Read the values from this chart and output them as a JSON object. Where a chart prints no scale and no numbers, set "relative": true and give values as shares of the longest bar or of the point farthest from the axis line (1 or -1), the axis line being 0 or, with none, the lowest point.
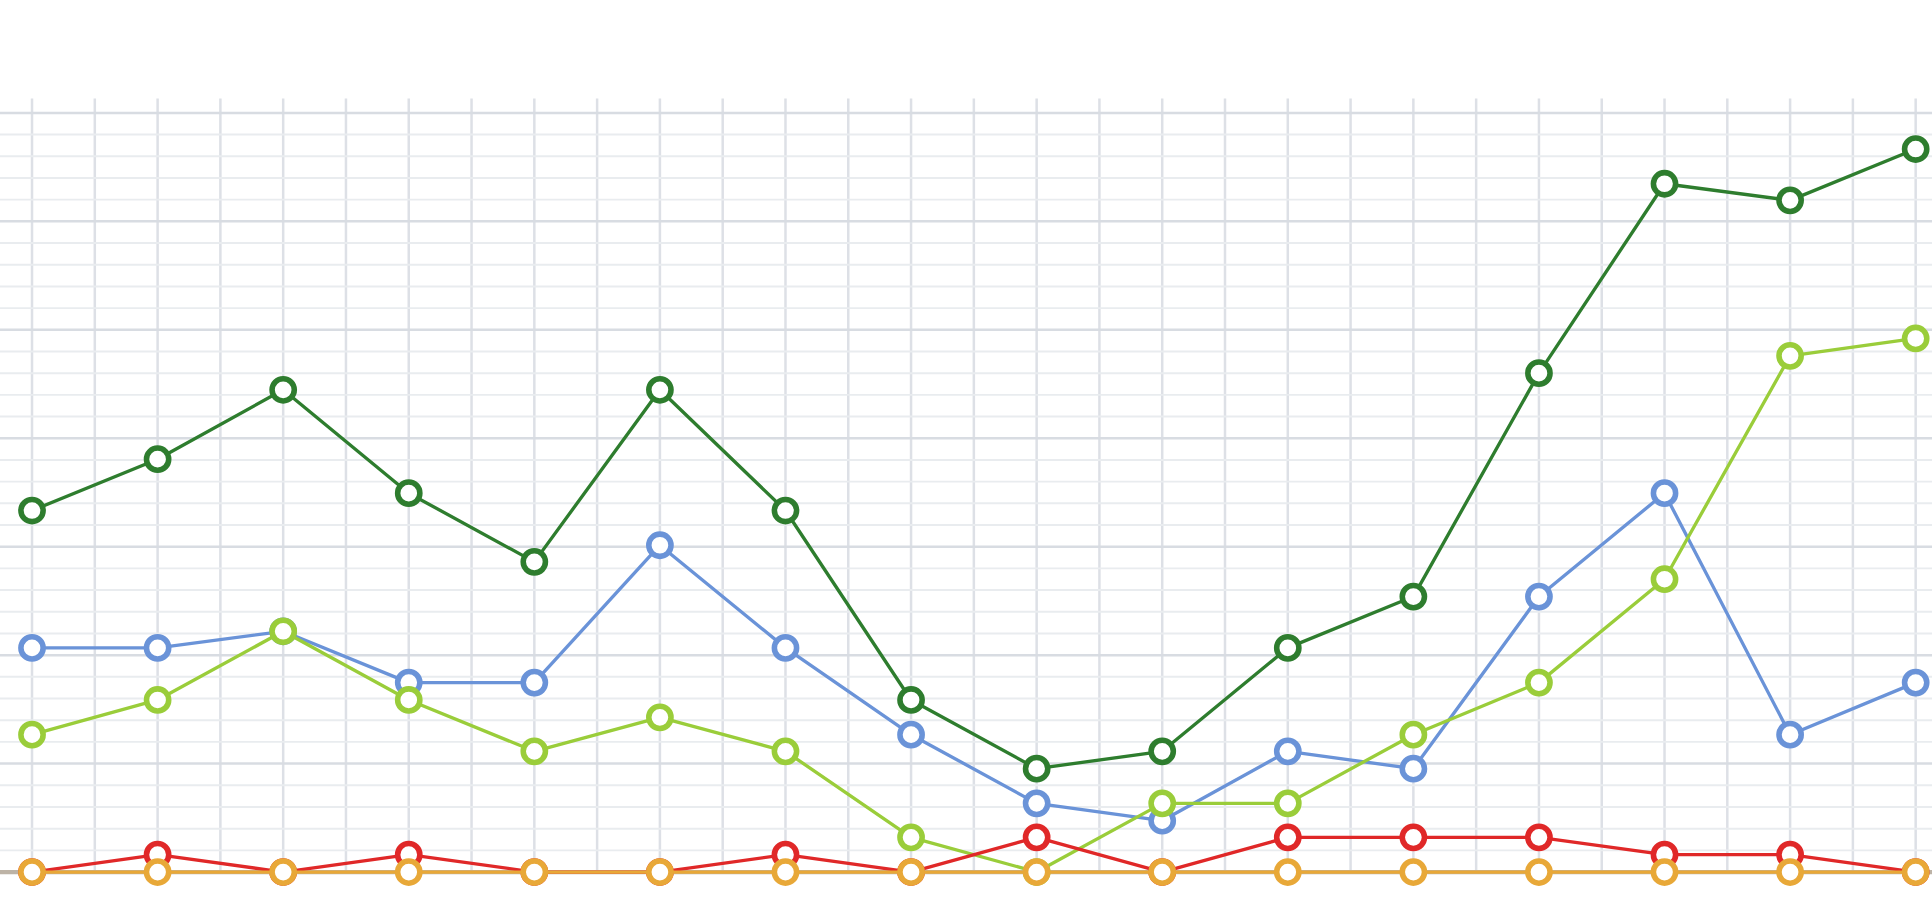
{
  "chart_data": {
    "type": "line",
    "relative": true,
    "grid": true,
    "marker": "circle",
    "line_style": "solid",
    "categories": [
      null,
      null,
      null,
      null,
      null,
      null,
      null,
      null,
      null,
      null,
      null,
      null,
      null,
      null,
      null,
      null
    ],
    "series": [
      {
        "color": "#2e7d2e",
        "values": [
          0.5,
          0.571,
          0.667,
          0.524,
          0.429,
          0.667,
          0.5,
          0.238,
          0.143,
          0.167,
          0.31,
          0.381,
          0.69,
          0.952,
          0.929,
          1.0
        ]
      },
      {
        "color": "#6a93d8",
        "values": [
          0.31,
          0.31,
          0.333,
          0.262,
          0.262,
          0.452,
          0.31,
          0.19,
          0.095,
          0.071,
          0.167,
          0.143,
          0.381,
          0.524,
          0.19,
          0.262
        ]
      },
      {
        "color": "#9acd3a",
        "values": [
          0.19,
          0.238,
          0.333,
          0.238,
          0.167,
          0.214,
          0.167,
          0.048,
          0.0,
          0.095,
          0.095,
          0.19,
          0.262,
          0.405,
          0.714,
          0.738
        ]
      },
      {
        "color": "#e02828",
        "values": [
          0.0,
          0.024,
          0.0,
          0.024,
          0.0,
          0.0,
          0.024,
          0.0,
          0.048,
          0.0,
          0.048,
          0.048,
          0.048,
          0.024,
          0.024,
          0.0
        ]
      },
      {
        "color": "#e8a838",
        "values": [
          0,
          0,
          0,
          0,
          0,
          0,
          0,
          0,
          0,
          0,
          0,
          0,
          0,
          0,
          0,
          0
        ]
      }
    ]
  }
}
